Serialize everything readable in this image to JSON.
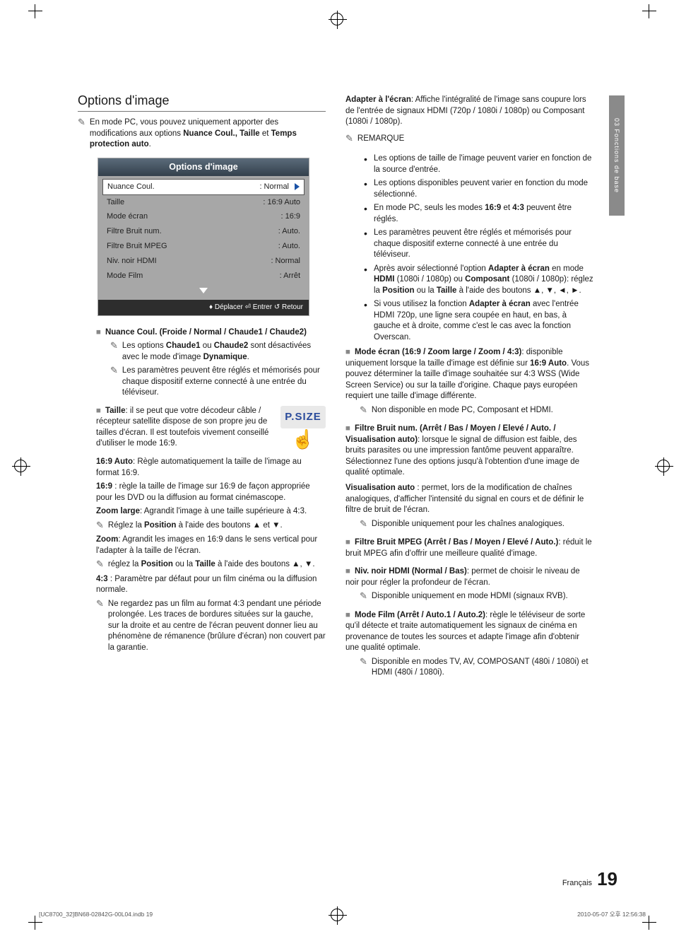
{
  "sideTab": "03    Fonctions de base",
  "sectionTitle": "Options d'image",
  "introNote": "En mode PC, vous pouvez uniquement apporter des modifications aux options <b>Nuance Coul., Taille</b> et <b>Temps protection auto</b>.",
  "menu": {
    "header": "Options d'image",
    "rows": [
      {
        "label": "Nuance Coul.",
        "value": ": Normal",
        "selected": true
      },
      {
        "label": "Taille",
        "value": ": 16:9 Auto"
      },
      {
        "label": "Mode écran",
        "value": ": 16:9"
      },
      {
        "label": "Filtre Bruit num.",
        "value": ": Auto."
      },
      {
        "label": "Filtre Bruit MPEG",
        "value": ": Auto."
      },
      {
        "label": "Niv. noir HDMI",
        "value": ": Normal"
      },
      {
        "label": "Mode Film",
        "value": ": Arrêt"
      }
    ],
    "footer": "♦ Déplacer  ⏎ Entrer  ↺ Retour"
  },
  "psizeLabel": "P.SIZE",
  "left": {
    "nuance": {
      "title": "Nuance Coul. (Froide / Normal / Chaude1 / Chaude2)",
      "n1": "Les options <b>Chaude1</b> ou <b>Chaude2</b> sont désactivées avec le mode d'image <b>Dynamique</b>.",
      "n2": "Les paramètres peuvent être réglés et mémorisés pour chaque dispositif externe connecté à une entrée du téléviseur."
    },
    "taille": {
      "title": "Taille",
      "lead": ": il se peut que votre décodeur câble / récepteur satellite dispose de son propre jeu de tailles d'écran. Il est toutefois vivement conseillé d'utiliser le mode 16:9.",
      "p169auto": "<b>16:9 Auto</b>: Règle automatiquement la taille de l'image au format 16:9.",
      "p169": "<b>16:9</b> : règle la taille de l'image sur 16:9 de façon appropriée pour les DVD ou la diffusion au format cinémascope.",
      "pzoomlarge": "<b>Zoom large</b>: Agrandit l'image à une taille supérieure à 4:3.",
      "nzoomlarge": "Réglez la <b>Position</b> à l'aide des boutons ▲ et ▼.",
      "pzoom": "<b>Zoom</b>: Agrandit les images en 16:9 dans le sens vertical pour l'adapter à la taille de l'écran.",
      "nzoom": "réglez la <b>Position</b> ou la <b>Taille</b> à l'aide des boutons ▲, ▼.",
      "p43": "<b>4:3</b> : Paramètre par défaut pour un film cinéma ou la diffusion normale.",
      "n43": "Ne regardez pas un film au format 4:3 pendant une période prolongée. Les traces de bordures situées sur la gauche, sur la droite et au centre de l'écran peuvent donner lieu au phénomène de rémanence (brûlure d'écran) non couvert par la garantie."
    }
  },
  "right": {
    "adapter": "<b>Adapter à l'écran</b>: Affiche l'intégralité de l'image sans coupure lors de l'entrée de signaux HDMI (720p / 1080i / 1080p) ou Composant (1080i / 1080p).",
    "remarqueLabel": "REMARQUE",
    "remarques": [
      "Les options de taille de l'image peuvent varier en fonction de la source d'entrée.",
      "Les options disponibles peuvent varier en fonction du mode sélectionné.",
      "En mode PC, seuls les modes <b>16:9</b> et <b>4:3</b> peuvent être réglés.",
      "Les paramètres peuvent être réglés et mémorisés pour chaque dispositif externe connecté à une entrée du téléviseur.",
      "Après avoir sélectionné l'option <b>Adapter à écran</b> en mode <b>HDMI</b> (1080i / 1080p) ou <b>Composant</b> (1080i / 1080p): réglez la <b>Position</b> ou la <b>Taille</b> à l'aide des boutons ▲, ▼, ◄, ►.",
      "Si vous utilisez la fonction <b>Adapter à écran</b> avec l'entrée HDMI 720p, une ligne sera coupée en haut, en bas, à gauche et à droite, comme c'est le cas avec la fonction Overscan."
    ],
    "modeEcran": {
      "title": "Mode écran (16:9 / Zoom large / Zoom / 4:3)",
      "body": ": disponible uniquement lorsque la taille d'image est définie sur <b>16:9 Auto</b>. Vous pouvez déterminer la taille d'image souhaitée sur 4:3 WSS (Wide Screen Service) ou sur la taille d'origine. Chaque pays européen requiert une taille d'image différente.",
      "note": "Non disponible en mode PC, Composant et HDMI."
    },
    "filtreNum": {
      "title": "Filtre Bruit num. (Arrêt / Bas / Moyen / Elevé / Auto. / Visualisation auto)",
      "body": ": lorsque le signal de diffusion est faible, des bruits parasites ou une impression fantôme peuvent apparaître. Sélectionnez l'une des options jusqu'à l'obtention d'une image de qualité optimale.",
      "visu": "<b>Visualisation auto</b> : permet, lors de la modification de chaînes analogiques, d'afficher l'intensité du signal en cours et de définir le filtre de bruit de l'écran.",
      "note": "Disponible uniquement pour les chaînes analogiques."
    },
    "filtreMpeg": {
      "title": "Filtre Bruit MPEG (Arrêt / Bas / Moyen / Elevé / Auto.)",
      "body": ": réduit le bruit MPEG afin d'offrir une meilleure qualité d'image."
    },
    "nivNoir": {
      "title": "Niv. noir HDMI (Normal / Bas)",
      "body": ": permet de choisir le niveau de noir pour régler la profondeur de l'écran.",
      "note": "Disponible uniquement en mode HDMI (signaux RVB)."
    },
    "modeFilm": {
      "title": "Mode Film (Arrêt / Auto.1 / Auto.2)",
      "body": ": règle le téléviseur de sorte qu'il détecte et traite automatiquement les signaux de cinéma en provenance de toutes les sources et adapte l'image afin d'obtenir une qualité optimale.",
      "note": "Disponible en modes TV, AV, COMPOSANT (480i / 1080i) et HDMI (480i / 1080i)."
    }
  },
  "pageLang": "Français",
  "pageNum": "19",
  "footerLeft": "[UC8700_32]BN68-02842G-00L04.indb   19",
  "footerRight": "2010-05-07   오후 12:56:38"
}
